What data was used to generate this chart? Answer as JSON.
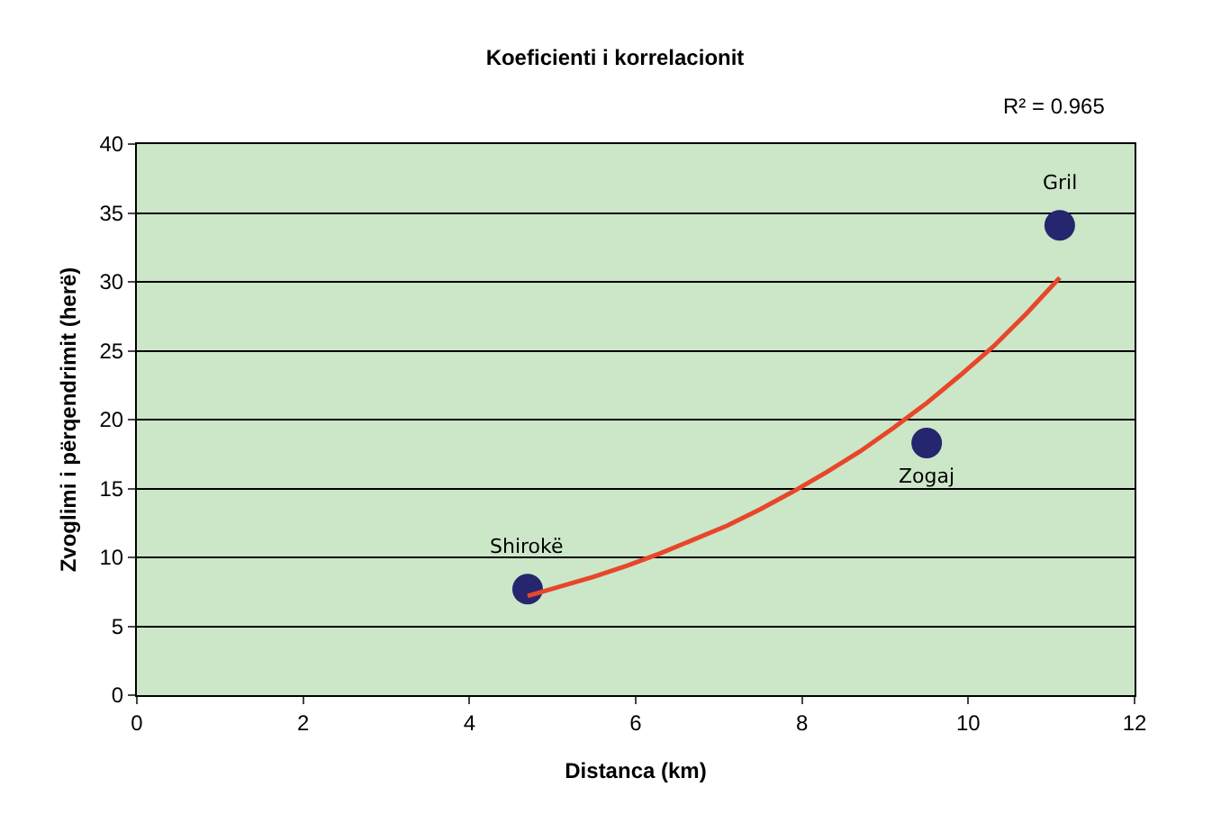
{
  "chart_data": {
    "type": "scatter",
    "title": "Koeficienti i korrelacionit",
    "xlabel": "Distanca (km)",
    "ylabel": "Zvoglimi i përqendrimit (herë)",
    "annotations": [
      "R² = 0.965",
      {
        "text": "Shirokë",
        "x": 4.7,
        "y": 7.7
      },
      {
        "text": "Zogaj",
        "x": 9.5,
        "y": 18.3
      },
      {
        "text": "Gril",
        "x": 11.1,
        "y": 34.1
      }
    ],
    "series": [
      {
        "color": "#26266e",
        "marker": "circle",
        "x": [
          4.7,
          9.5,
          11.1
        ],
        "values": [
          7.7,
          18.3,
          34.1
        ]
      },
      {
        "type": "line",
        "color": "#e8462a",
        "marker": "none",
        "line_style": "solid",
        "x": [
          4.7,
          5.1,
          5.5,
          5.9,
          6.3,
          6.7,
          7.1,
          7.5,
          7.9,
          8.3,
          8.7,
          9.1,
          9.5,
          9.9,
          10.3,
          10.7,
          11.1
        ],
        "values": [
          7.2,
          7.9,
          8.6,
          9.4,
          10.3,
          11.3,
          12.3,
          13.5,
          14.8,
          16.2,
          17.7,
          19.4,
          21.2,
          23.2,
          25.3,
          27.7,
          30.3
        ]
      }
    ],
    "xlim": [
      0,
      12
    ],
    "xticks": [
      0,
      2,
      4,
      6,
      8,
      10,
      12
    ],
    "ylim": [
      0,
      40
    ],
    "yticks": [
      0,
      5,
      10,
      15,
      20,
      25,
      30,
      35,
      40
    ],
    "grid": "y"
  }
}
